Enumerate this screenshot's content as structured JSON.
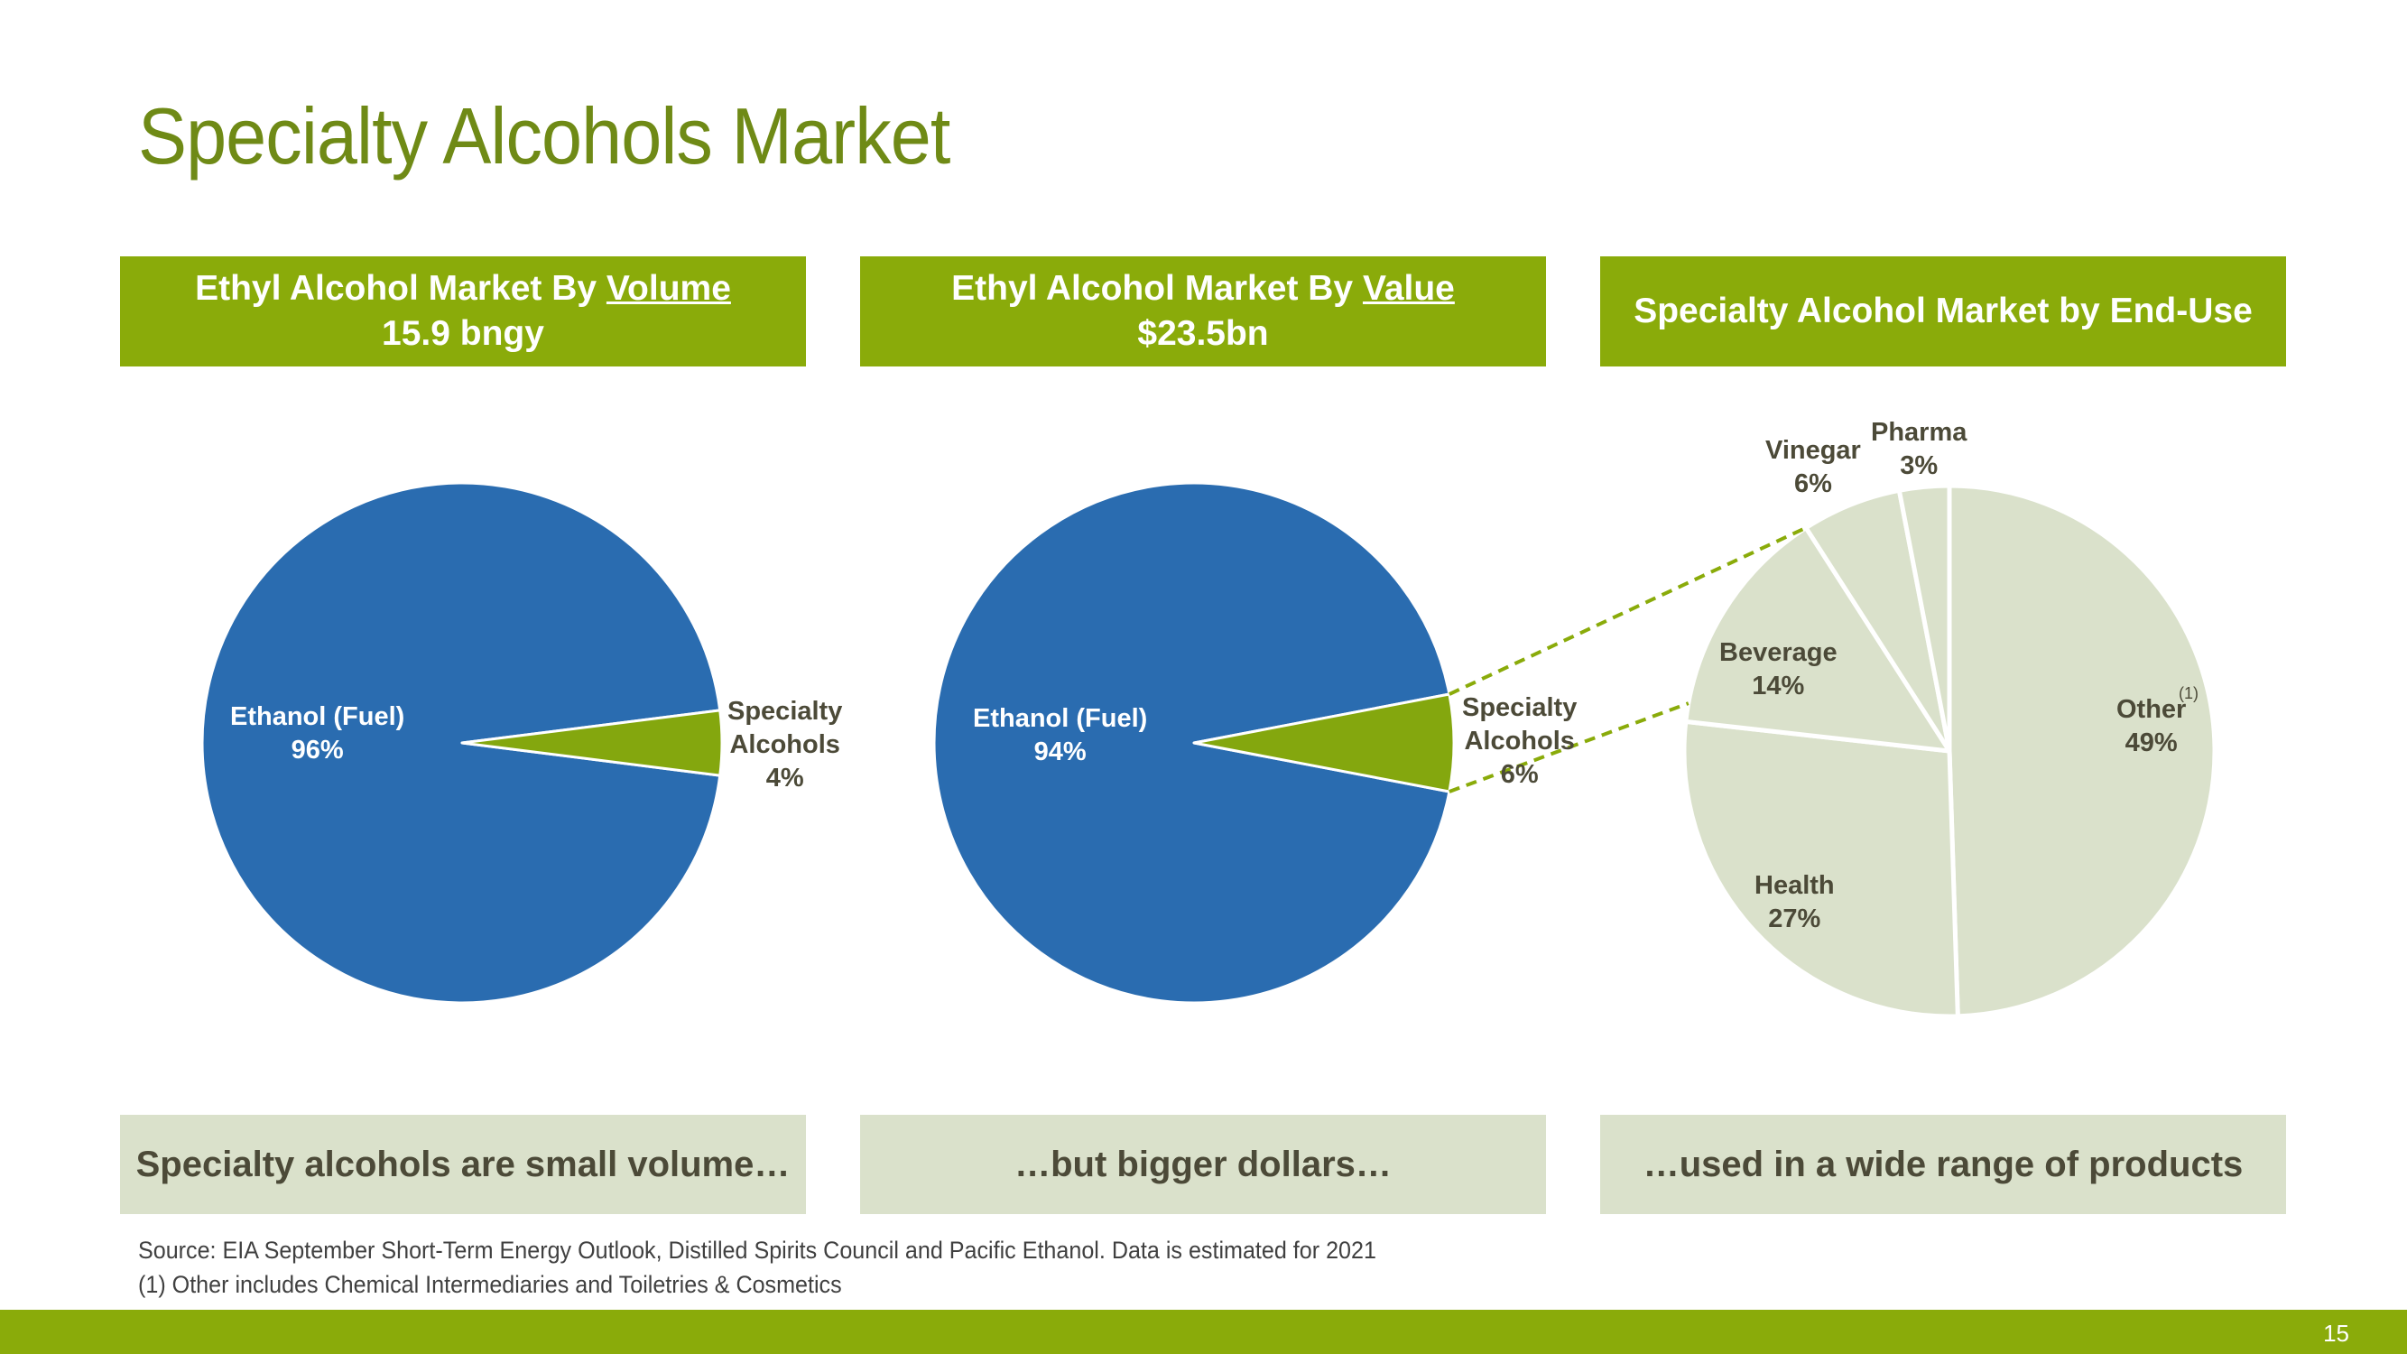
{
  "slide": {
    "title": "Specialty Alcohols Market",
    "page_number": "15"
  },
  "headers": [
    {
      "line1_prefix": "Ethyl Alcohol Market By ",
      "line1_underlined": "Volume",
      "line2": "15.9 bngy"
    },
    {
      "line1_prefix": "Ethyl Alcohol Market By ",
      "line1_underlined": "Value",
      "line2": "$23.5bn"
    },
    {
      "line1": "Specialty Alcohol Market by End-Use"
    }
  ],
  "takeaways": [
    "Specialty alcohols are small volume…",
    "…but bigger dollars…",
    "…used in a wide range of products"
  ],
  "footnotes": {
    "source": "Source: EIA September Short-Term Energy Outlook, Distilled Spirits Council and Pacific Ethanol. Data is estimated for 2021",
    "note1": "(1) Other includes Chemical Intermediaries and Toiletries & Cosmetics"
  },
  "colors": {
    "brand_green": "#8aab0a",
    "title_green": "#6f8a16",
    "ethanol_blue": "#2a6cb0",
    "specialty_green": "#84a70e",
    "end_use_gray": "#dae1cb",
    "label_dark": "#4c4a38"
  },
  "chart_data": [
    {
      "type": "pie",
      "title": "Ethyl Alcohol Market By Volume",
      "slices": [
        {
          "name": "Ethanol (Fuel)",
          "label_pct": "96%",
          "value": 96
        },
        {
          "name": "Specialty Alcohols",
          "name_lines": [
            "Specialty",
            "Alcohols"
          ],
          "label_pct": "4%",
          "value": 4
        }
      ]
    },
    {
      "type": "pie",
      "title": "Ethyl Alcohol Market By Value",
      "slices": [
        {
          "name": "Ethanol (Fuel)",
          "label_pct": "94%",
          "value": 94
        },
        {
          "name": "Specialty Alcohols",
          "name_lines": [
            "Specialty",
            "Alcohols"
          ],
          "label_pct": "6%",
          "value": 6
        }
      ]
    },
    {
      "type": "pie",
      "title": "Specialty Alcohol Market by End-Use",
      "slices": [
        {
          "name": "Other",
          "label_pct": "49%",
          "value": 49,
          "footnote": "(1)"
        },
        {
          "name": "Health",
          "label_pct": "27%",
          "value": 27
        },
        {
          "name": "Beverage",
          "label_pct": "14%",
          "value": 14
        },
        {
          "name": "Vinegar",
          "label_pct": "6%",
          "value": 6
        },
        {
          "name": "Pharma",
          "label_pct": "3%",
          "value": 3
        }
      ]
    }
  ]
}
